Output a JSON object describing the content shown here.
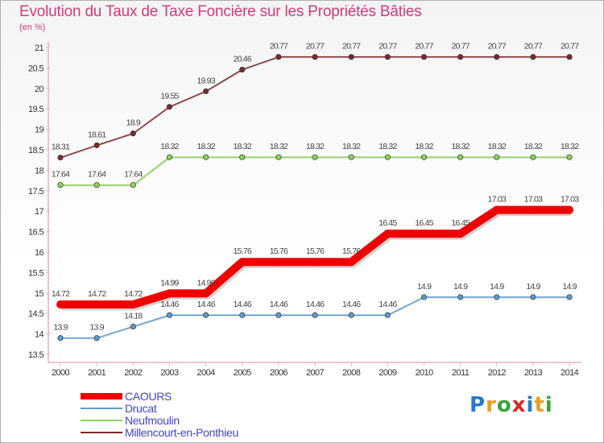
{
  "title": "Evolution du Taux de Taxe Foncière sur les Propriétés Bâties",
  "unit": "(en %)",
  "logo": {
    "text": "Proxiti",
    "colors": [
      "#2a78c8",
      "#e8a020",
      "#3aa33a",
      "#d62828",
      "#2a78c8",
      "#e8a020",
      "#3aa33a"
    ]
  },
  "chart_data": {
    "type": "line",
    "x": [
      "2000",
      "2001",
      "2002",
      "2003",
      "2004",
      "2005",
      "2006",
      "2007",
      "2008",
      "2009",
      "2010",
      "2011",
      "2012",
      "2013",
      "2014"
    ],
    "ylim": [
      13.5,
      21
    ],
    "yticks": [
      "13.5",
      "14",
      "14.5",
      "15",
      "15.5",
      "16",
      "16.5",
      "17",
      "17.5",
      "18",
      "18.5",
      "19",
      "19.5",
      "20",
      "20.5",
      "21"
    ],
    "grid": false,
    "legend": "bottom-left",
    "series": [
      {
        "name": "CAOURS",
        "color": "#ee0000",
        "values": [
          14.72,
          14.72,
          14.72,
          14.99,
          14.99,
          15.76,
          15.76,
          15.76,
          15.76,
          16.45,
          16.45,
          16.45,
          17.03,
          17.03,
          17.03
        ],
        "labels": [
          "14.72",
          "14.72",
          "14.72",
          "14.99",
          "14.99",
          "15.76",
          "15.76",
          "15.76",
          "15.76",
          "16.45",
          "16.45",
          "16.45",
          "17.03",
          "17.03",
          "17.03"
        ]
      },
      {
        "name": "Drucat",
        "color": "#5b9bd0",
        "values": [
          13.9,
          13.9,
          14.18,
          14.46,
          14.46,
          14.46,
          14.46,
          14.46,
          14.46,
          14.46,
          14.9,
          14.9,
          14.9,
          14.9,
          14.9
        ],
        "labels": [
          "13.9",
          "13.9",
          "14.18",
          "14.46",
          "14.46",
          "14.46",
          "14.46",
          "14.46",
          "14.46",
          "14.46",
          "14.9",
          "14.9",
          "14.9",
          "14.9",
          "14.9"
        ]
      },
      {
        "name": "Neufmoulin",
        "color": "#8dd45a",
        "values": [
          17.64,
          17.64,
          17.64,
          18.32,
          18.32,
          18.32,
          18.32,
          18.32,
          18.32,
          18.32,
          18.32,
          18.32,
          18.32,
          18.32,
          18.32
        ],
        "labels": [
          "17.64",
          "17.64",
          "17.64",
          "18.32",
          "18.32",
          "18.32",
          "18.32",
          "18.32",
          "18.32",
          "18.32",
          "18.32",
          "18.32",
          "18.32",
          "18.32",
          "18.32"
        ]
      },
      {
        "name": "Millencourt-en-Ponthieu",
        "color": "#7a2a2a",
        "values": [
          18.31,
          18.61,
          18.9,
          19.55,
          19.93,
          20.46,
          20.77,
          20.77,
          20.77,
          20.77,
          20.77,
          20.77,
          20.77,
          20.77,
          20.77
        ],
        "labels": [
          "18.31",
          "18.61",
          "18.9",
          "19.55",
          "19.93",
          "20.46",
          "20.77",
          "20.77",
          "20.77",
          "20.77",
          "20.77",
          "20.77",
          "20.77",
          "20.77",
          "20.77"
        ]
      }
    ]
  }
}
